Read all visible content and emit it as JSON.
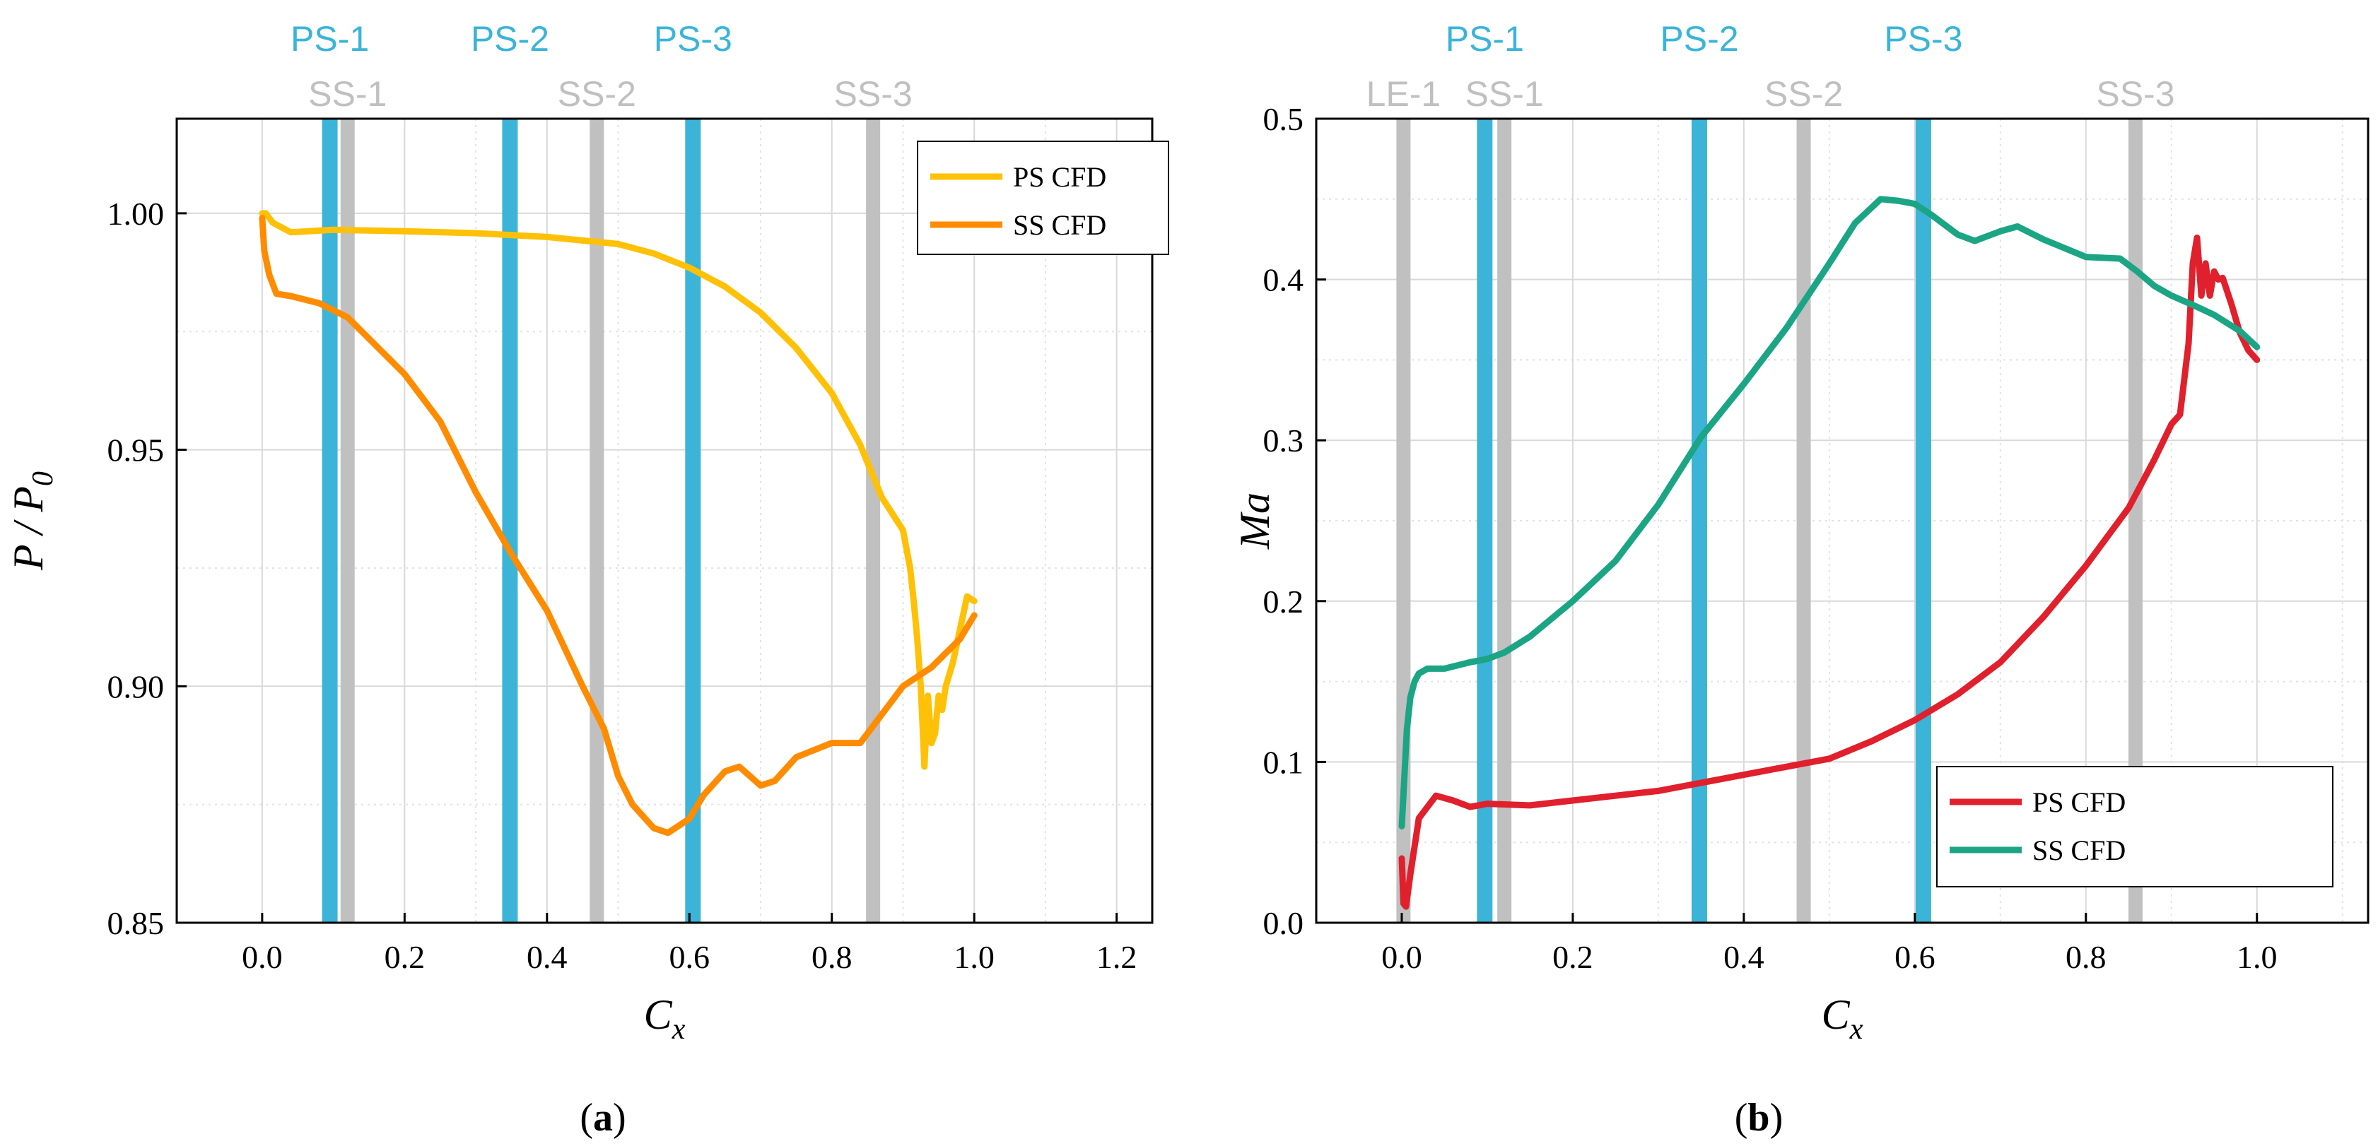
{
  "panels": [
    {
      "id": "a",
      "caption": {
        "open": "(",
        "letter": "a",
        "close": ")"
      },
      "chart_data": {
        "type": "line",
        "xlabel": "Cx",
        "xlabel_main": "C",
        "xlabel_sub": "x",
        "ylabel": "P / P0",
        "ylabel_main": "P / P",
        "ylabel_sub": "0",
        "xlim": [
          -0.12,
          1.25
        ],
        "ylim": [
          0.85,
          1.02
        ],
        "xticks": [
          0.0,
          0.2,
          0.4,
          0.6,
          0.8,
          1.0,
          1.2
        ],
        "xtick_labels": [
          "0.0",
          "0.2",
          "0.4",
          "0.6",
          "0.8",
          "1.0",
          "1.2"
        ],
        "yticks": [
          0.85,
          0.9,
          0.95,
          1.0
        ],
        "ytick_labels": [
          "0.85",
          "0.90",
          "0.95",
          "1.00"
        ],
        "grid": true,
        "legend_position": "top-right",
        "markers": [
          {
            "label": "PS-1",
            "x": 0.095,
            "kind": "PS"
          },
          {
            "label": "PS-2",
            "x": 0.348,
            "kind": "PS"
          },
          {
            "label": "PS-3",
            "x": 0.605,
            "kind": "PS"
          },
          {
            "label": "SS-1",
            "x": 0.12,
            "kind": "SS"
          },
          {
            "label": "SS-2",
            "x": 0.47,
            "kind": "SS"
          },
          {
            "label": "SS-3",
            "x": 0.858,
            "kind": "SS"
          }
        ],
        "series": [
          {
            "name": "PS CFD",
            "color": "#FFC107",
            "x": [
              0.0,
              0.005,
              0.015,
              0.04,
              0.1,
              0.2,
              0.3,
              0.4,
              0.5,
              0.55,
              0.6,
              0.65,
              0.7,
              0.75,
              0.8,
              0.84,
              0.87,
              0.9,
              0.91,
              0.915,
              0.92,
              0.925,
              0.93,
              0.935,
              0.94,
              0.945,
              0.95,
              0.955,
              0.96,
              0.97,
              0.98,
              0.99,
              1.0
            ],
            "y": [
              1.0,
              1.0,
              0.998,
              0.996,
              0.9965,
              0.9962,
              0.9958,
              0.995,
              0.9935,
              0.9915,
              0.9885,
              0.9845,
              0.979,
              0.9715,
              0.962,
              0.951,
              0.94,
              0.933,
              0.925,
              0.918,
              0.91,
              0.9,
              0.883,
              0.898,
              0.888,
              0.89,
              0.898,
              0.895,
              0.9,
              0.905,
              0.912,
              0.919,
              0.918
            ]
          },
          {
            "name": "SS CFD",
            "color": "#FF8C00",
            "x": [
              0.0,
              0.003,
              0.01,
              0.02,
              0.04,
              0.08,
              0.12,
              0.16,
              0.2,
              0.25,
              0.3,
              0.35,
              0.4,
              0.45,
              0.48,
              0.5,
              0.52,
              0.55,
              0.57,
              0.6,
              0.62,
              0.65,
              0.67,
              0.7,
              0.72,
              0.75,
              0.8,
              0.84,
              0.86,
              0.88,
              0.9,
              0.92,
              0.94,
              0.96,
              0.98,
              1.0
            ],
            "y": [
              0.999,
              0.992,
              0.987,
              0.983,
              0.9825,
              0.981,
              0.978,
              0.972,
              0.966,
              0.956,
              0.941,
              0.928,
              0.916,
              0.9,
              0.891,
              0.881,
              0.875,
              0.87,
              0.869,
              0.872,
              0.877,
              0.882,
              0.883,
              0.879,
              0.88,
              0.885,
              0.888,
              0.888,
              0.892,
              0.896,
              0.9,
              0.902,
              0.904,
              0.907,
              0.91,
              0.915
            ]
          }
        ]
      }
    },
    {
      "id": "b",
      "caption": {
        "open": "(",
        "letter": "b",
        "close": ")"
      },
      "chart_data": {
        "type": "line",
        "xlabel": "Cx",
        "xlabel_main": "C",
        "xlabel_sub": "x",
        "ylabel": "Ma",
        "xlim": [
          -0.1,
          1.13
        ],
        "ylim": [
          0.0,
          0.5
        ],
        "xticks": [
          0.0,
          0.2,
          0.4,
          0.6,
          0.8,
          1.0
        ],
        "xtick_labels": [
          "0.0",
          "0.2",
          "0.4",
          "0.6",
          "0.8",
          "1.0"
        ],
        "yticks": [
          0.0,
          0.1,
          0.2,
          0.3,
          0.4,
          0.5
        ],
        "ytick_labels": [
          "0.0",
          "0.1",
          "0.2",
          "0.3",
          "0.4",
          "0.5"
        ],
        "grid": true,
        "legend_position": "bottom-right",
        "markers": [
          {
            "label": "LE-1",
            "x": 0.002,
            "kind": "SS"
          },
          {
            "label": "PS-1",
            "x": 0.097,
            "kind": "PS"
          },
          {
            "label": "PS-2",
            "x": 0.348,
            "kind": "PS"
          },
          {
            "label": "PS-3",
            "x": 0.61,
            "kind": "PS"
          },
          {
            "label": "SS-1",
            "x": 0.12,
            "kind": "SS"
          },
          {
            "label": "SS-2",
            "x": 0.47,
            "kind": "SS"
          },
          {
            "label": "SS-3",
            "x": 0.858,
            "kind": "SS"
          }
        ],
        "series": [
          {
            "name": "PS CFD",
            "color": "#E0202C",
            "x": [
              0.0,
              0.002,
              0.005,
              0.01,
              0.02,
              0.04,
              0.06,
              0.08,
              0.1,
              0.15,
              0.2,
              0.3,
              0.4,
              0.45,
              0.5,
              0.55,
              0.6,
              0.65,
              0.7,
              0.75,
              0.8,
              0.85,
              0.88,
              0.9,
              0.91,
              0.92,
              0.925,
              0.93,
              0.935,
              0.94,
              0.945,
              0.95,
              0.955,
              0.96,
              0.97,
              0.98,
              0.99,
              1.0
            ],
            "y": [
              0.04,
              0.012,
              0.01,
              0.03,
              0.065,
              0.079,
              0.076,
              0.072,
              0.074,
              0.073,
              0.076,
              0.082,
              0.092,
              0.097,
              0.102,
              0.113,
              0.126,
              0.142,
              0.162,
              0.19,
              0.222,
              0.258,
              0.288,
              0.31,
              0.316,
              0.36,
              0.41,
              0.426,
              0.39,
              0.41,
              0.39,
              0.405,
              0.4,
              0.401,
              0.385,
              0.367,
              0.356,
              0.35
            ]
          },
          {
            "name": "SS CFD",
            "color": "#1BA584",
            "x": [
              0.0,
              0.003,
              0.006,
              0.01,
              0.015,
              0.02,
              0.03,
              0.05,
              0.08,
              0.1,
              0.12,
              0.15,
              0.2,
              0.25,
              0.3,
              0.35,
              0.4,
              0.45,
              0.5,
              0.53,
              0.56,
              0.58,
              0.6,
              0.62,
              0.65,
              0.67,
              0.7,
              0.72,
              0.75,
              0.8,
              0.84,
              0.86,
              0.88,
              0.9,
              0.93,
              0.95,
              0.98,
              1.0
            ],
            "y": [
              0.06,
              0.09,
              0.12,
              0.14,
              0.15,
              0.155,
              0.158,
              0.158,
              0.162,
              0.164,
              0.168,
              0.178,
              0.2,
              0.225,
              0.26,
              0.302,
              0.335,
              0.37,
              0.41,
              0.435,
              0.45,
              0.449,
              0.447,
              0.44,
              0.428,
              0.424,
              0.43,
              0.433,
              0.425,
              0.414,
              0.413,
              0.405,
              0.396,
              0.39,
              0.383,
              0.378,
              0.368,
              0.358
            ]
          }
        ]
      }
    }
  ],
  "colors": {
    "ps_marker": "#3BB4D8",
    "ss_marker": "#C0C0C0",
    "grid": "#D9D9D9"
  }
}
